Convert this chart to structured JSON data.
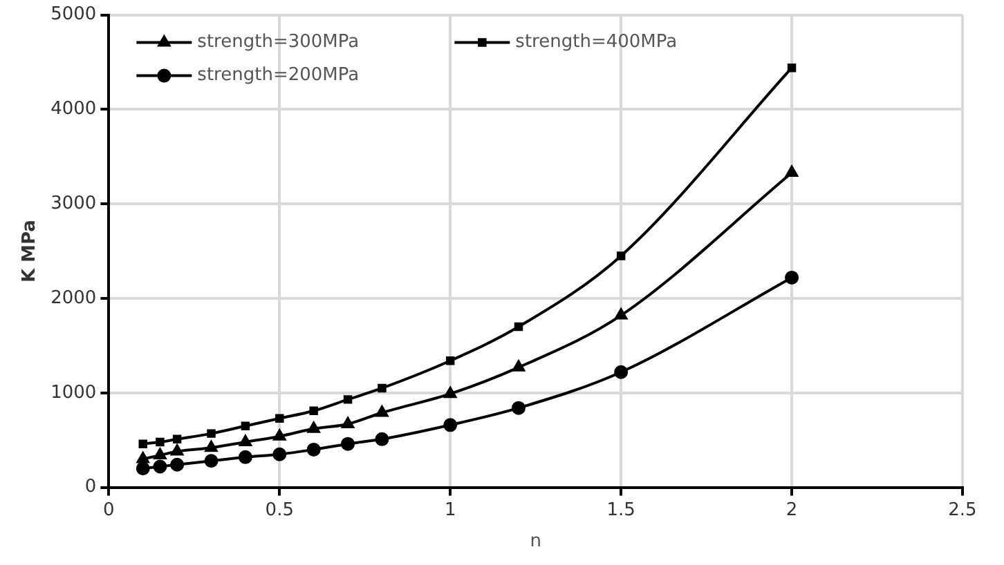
{
  "chart_data": {
    "type": "line",
    "xlabel": "n",
    "ylabel": "K MPa",
    "x": [
      0.1,
      0.15,
      0.2,
      0.3,
      0.4,
      0.5,
      0.6,
      0.7,
      0.8,
      1.0,
      1.2,
      1.5,
      2.0
    ],
    "series": [
      {
        "name": "strength=300MPa",
        "color": "#000000",
        "marker": "triangle",
        "values": [
          300,
          340,
          380,
          420,
          480,
          540,
          620,
          670,
          790,
          990,
          1270,
          1820,
          3330
        ]
      },
      {
        "name": "strength=400MPa",
        "color": "#000000",
        "marker": "square",
        "values": [
          460,
          480,
          510,
          570,
          650,
          730,
          810,
          930,
          1050,
          1340,
          1700,
          2450,
          4440
        ]
      },
      {
        "name": "strength=200MPa",
        "color": "#000000",
        "marker": "circle",
        "values": [
          200,
          220,
          240,
          280,
          320,
          350,
          400,
          460,
          510,
          660,
          840,
          1220,
          2220
        ]
      }
    ],
    "xlim": [
      0,
      2.5
    ],
    "xticks": [
      0,
      0.5,
      1,
      1.5,
      2,
      2.5
    ],
    "ylim": [
      0,
      5000
    ],
    "yticks": [
      0,
      1000,
      2000,
      3000,
      4000,
      5000
    ],
    "grid": true,
    "legend": "top left",
    "line_style": "solid"
  }
}
